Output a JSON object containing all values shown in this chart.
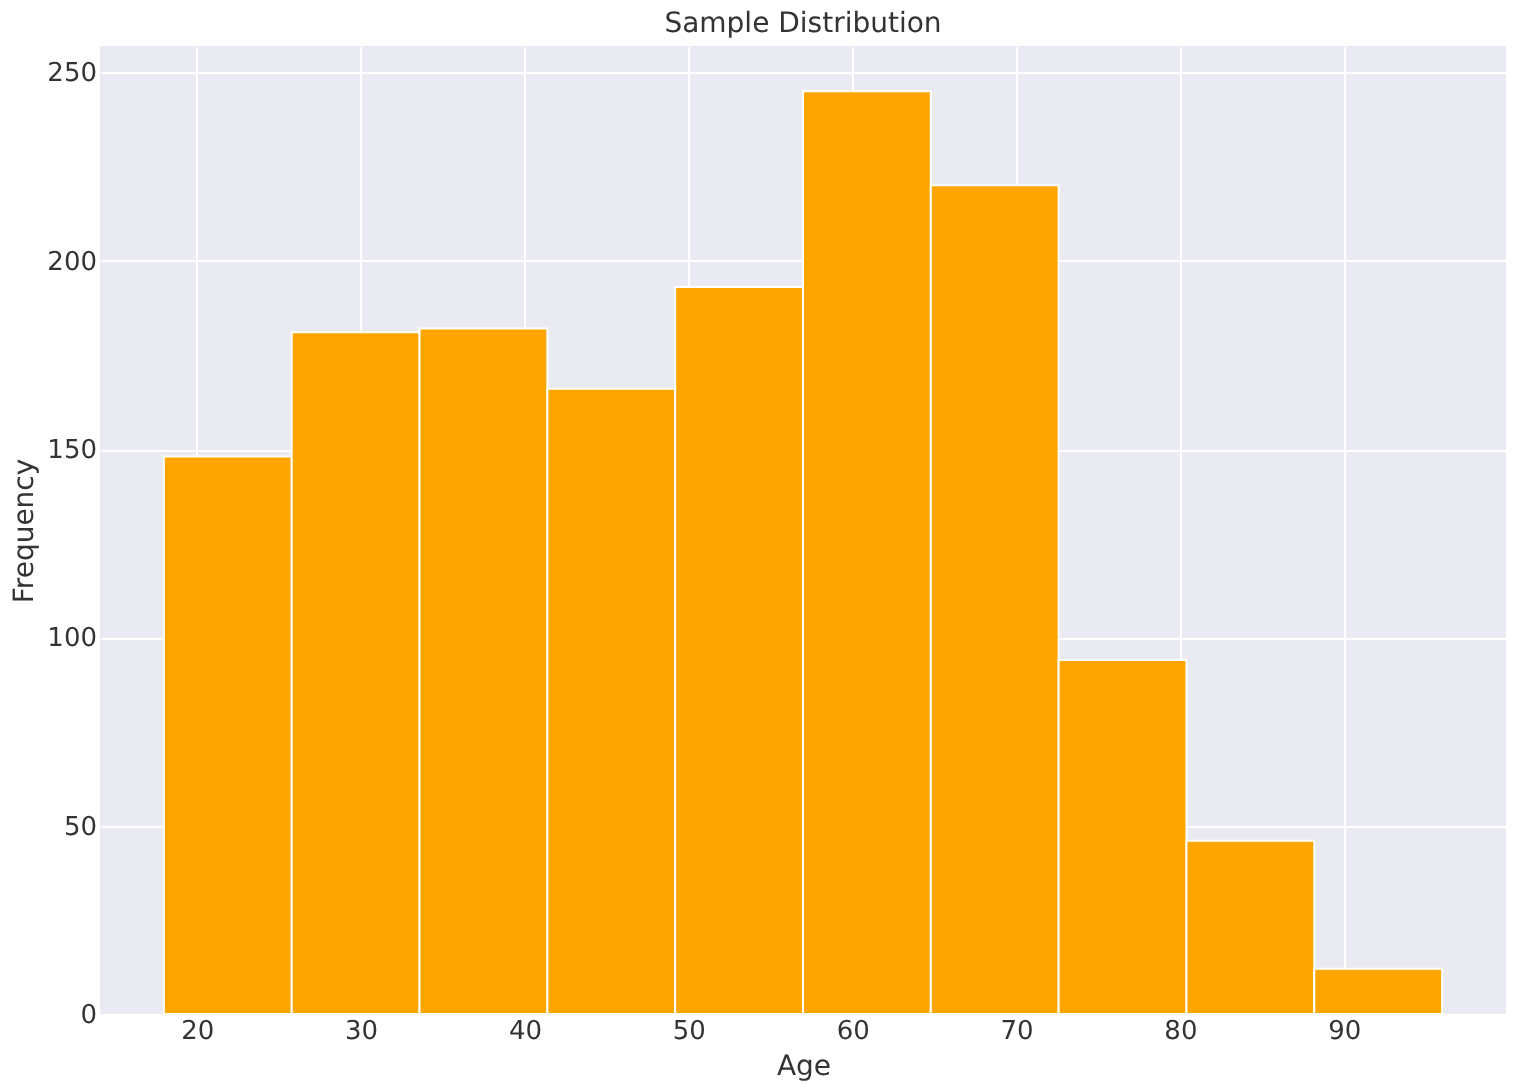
{
  "chart_data": {
    "type": "histogram",
    "title": "Sample Distribution",
    "xlabel": "Age",
    "ylabel": "Frequency",
    "bins": [
      18,
      25.8,
      33.6,
      41.4,
      49.2,
      57,
      64.8,
      72.6,
      80.4,
      88.2,
      96
    ],
    "values": [
      148,
      181,
      182,
      166,
      193,
      245,
      220,
      94,
      46,
      12
    ],
    "color": "#ffa500",
    "xlim": [
      14.1,
      99.9
    ],
    "xticks": [
      20,
      30,
      40,
      50,
      60,
      70,
      80,
      90
    ],
    "ylim": [
      0,
      257
    ],
    "yticks": [
      0,
      50,
      100,
      150,
      200,
      250
    ],
    "grid": true
  }
}
